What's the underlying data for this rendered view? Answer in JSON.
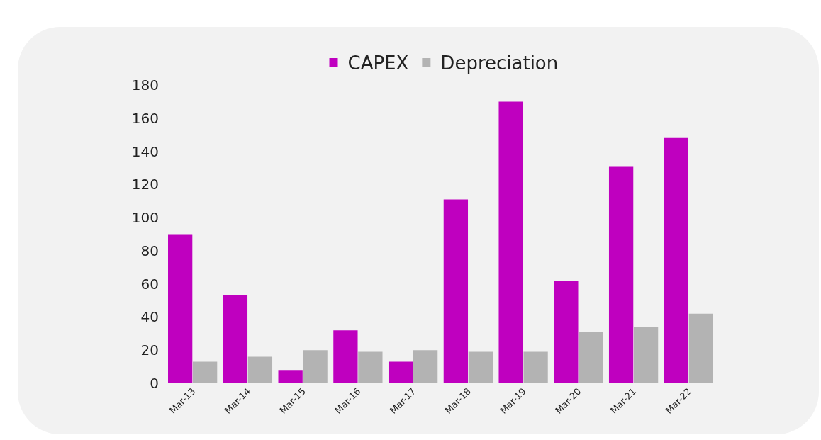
{
  "chart_data": {
    "type": "bar",
    "categories": [
      "Mar-13",
      "Mar-14",
      "Mar-15",
      "Mar-16",
      "Mar-17",
      "Mar-18",
      "Mar-19",
      "Mar-20",
      "Mar-21",
      "Mar-22"
    ],
    "series": [
      {
        "name": "CAPEX",
        "color": "#bf00bf",
        "values": [
          90,
          53,
          8,
          32,
          13,
          111,
          170,
          62,
          131,
          148
        ]
      },
      {
        "name": "Depreciation",
        "color": "#b3b3b3",
        "values": [
          13,
          16,
          20,
          19,
          20,
          19,
          19,
          31,
          34,
          42
        ]
      }
    ],
    "ylim": [
      0,
      180
    ],
    "yticks": [
      0,
      20,
      40,
      60,
      80,
      100,
      120,
      140,
      160,
      180
    ],
    "legend": "top"
  }
}
